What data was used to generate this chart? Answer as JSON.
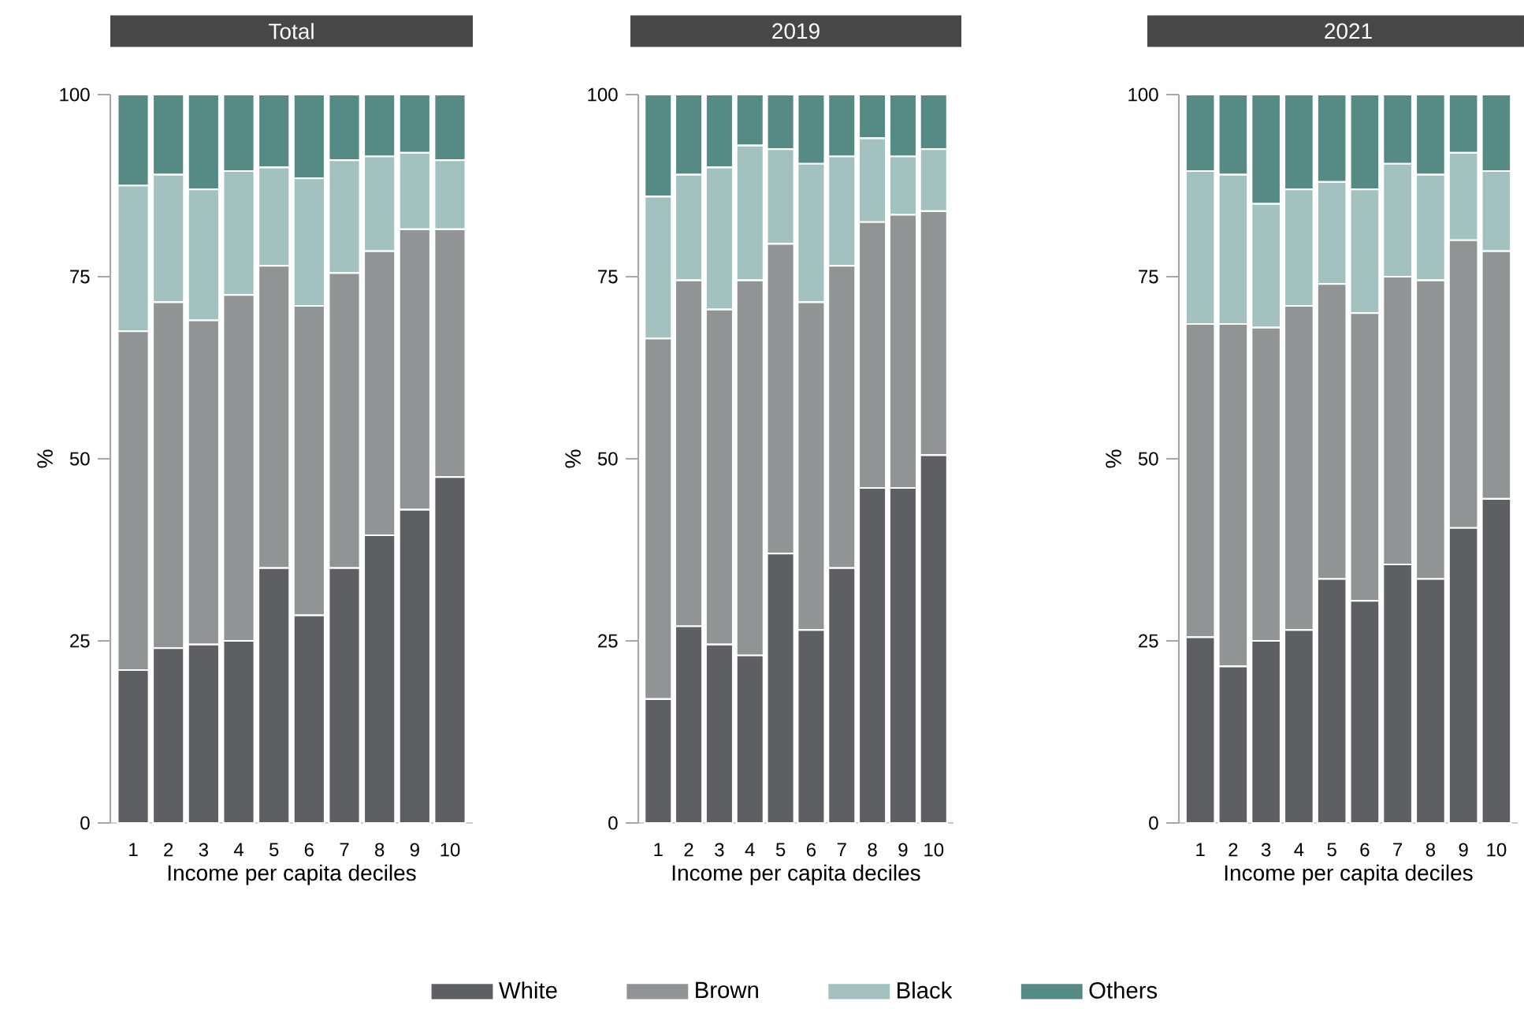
{
  "chart_data": [
    {
      "type": "bar",
      "stacked": true,
      "title": "Total",
      "xlabel": "Income per capita deciles",
      "ylabel": "%",
      "categories": [
        "1",
        "2",
        "3",
        "4",
        "5",
        "6",
        "7",
        "8",
        "9",
        "10"
      ],
      "ylim": [
        0,
        100
      ],
      "yticks": [
        0,
        25,
        50,
        75,
        100
      ],
      "legend": false,
      "series": [
        {
          "color": "#5e5f63",
          "values": [
            21,
            24,
            24.5,
            25,
            35,
            28.5,
            35,
            39.5,
            43,
            47.5
          ]
        },
        {
          "color": "#919495",
          "values": [
            46.5,
            47.5,
            44.5,
            47.5,
            41.5,
            42.5,
            40.5,
            39,
            38.5,
            34
          ]
        },
        {
          "color": "#a3c1bf",
          "values": [
            20,
            17.5,
            18,
            17,
            13.5,
            17.5,
            15.5,
            13,
            10.5,
            9.5
          ]
        },
        {
          "color": "#568a85",
          "values": [
            12.5,
            11,
            13,
            10.5,
            10,
            11.5,
            9,
            8.5,
            8,
            9
          ]
        }
      ]
    },
    {
      "type": "bar",
      "stacked": true,
      "title": "2019",
      "xlabel": "Income per capita deciles",
      "ylabel": "%",
      "categories": [
        "1",
        "2",
        "3",
        "4",
        "5",
        "6",
        "7",
        "8",
        "9",
        "10"
      ],
      "ylim": [
        0,
        100
      ],
      "yticks": [
        0,
        25,
        50,
        75,
        100
      ],
      "legend": "bottom",
      "series": [
        {
          "name": "White",
          "color": "#5e5f63",
          "values": [
            17,
            27,
            24.5,
            23,
            37,
            26.5,
            35,
            46,
            46,
            50.5
          ]
        },
        {
          "name": "Brown",
          "color": "#919495",
          "values": [
            49.5,
            47.5,
            46,
            51.5,
            42.5,
            45,
            41.5,
            36.5,
            37.5,
            33.5
          ]
        },
        {
          "name": "Black",
          "color": "#a3c1bf",
          "values": [
            19.5,
            14.5,
            19.5,
            18.5,
            13,
            19,
            15,
            11.5,
            8,
            8.5
          ]
        },
        {
          "name": "Others",
          "color": "#568a85",
          "values": [
            14,
            11,
            10,
            7,
            7.5,
            9.5,
            8.5,
            6,
            8.5,
            7.5
          ]
        }
      ]
    },
    {
      "type": "bar",
      "stacked": true,
      "title": "2021",
      "xlabel": "Income per capita deciles",
      "ylabel": "%",
      "categories": [
        "1",
        "2",
        "3",
        "4",
        "5",
        "6",
        "7",
        "8",
        "9",
        "10"
      ],
      "ylim": [
        0,
        100
      ],
      "yticks": [
        0,
        25,
        50,
        75,
        100
      ],
      "legend": false,
      "series": [
        {
          "color": "#5e5f63",
          "values": [
            25.5,
            21.5,
            25,
            26.5,
            33.5,
            30.5,
            35.5,
            33.5,
            40.5,
            44.5
          ]
        },
        {
          "color": "#919495",
          "values": [
            43,
            47,
            43,
            44.5,
            40.5,
            39.5,
            39.5,
            41,
            39.5,
            34
          ]
        },
        {
          "color": "#a3c1bf",
          "values": [
            21,
            20.5,
            17,
            16,
            14,
            17,
            15.5,
            14.5,
            12,
            11
          ]
        },
        {
          "color": "#568a85",
          "values": [
            10.5,
            11,
            15,
            13,
            12,
            13,
            9.5,
            11,
            8,
            10.5
          ]
        }
      ]
    }
  ]
}
